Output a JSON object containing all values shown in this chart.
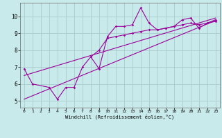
{
  "bg_color": "#c8eaea",
  "line_color": "#990099",
  "grid_color": "#aacccc",
  "x_data": [
    0,
    1,
    2,
    3,
    4,
    5,
    6,
    7,
    8,
    9,
    10,
    11,
    12,
    13,
    14,
    15,
    16,
    17,
    18,
    19,
    20,
    21,
    22,
    23
  ],
  "line1_y": [
    6.9,
    6.0,
    null,
    5.8,
    5.1,
    5.8,
    5.8,
    7.0,
    7.6,
    6.9,
    8.8,
    9.4,
    9.4,
    9.5,
    10.5,
    9.6,
    9.2,
    9.3,
    9.4,
    9.8,
    9.9,
    9.3,
    9.6,
    9.8
  ],
  "line2_y": [
    null,
    null,
    null,
    null,
    null,
    null,
    null,
    null,
    7.6,
    8.0,
    8.7,
    8.8,
    8.9,
    9.0,
    9.1,
    9.2,
    9.2,
    9.3,
    9.4,
    9.5,
    9.6,
    9.5,
    9.6,
    9.7
  ],
  "reg_line1_x": [
    0,
    23
  ],
  "reg_line1_y": [
    6.5,
    9.9
  ],
  "reg_line2_x": [
    0,
    23
  ],
  "reg_line2_y": [
    5.1,
    9.75
  ],
  "xlabel": "Windchill (Refroidissement éolien,°C)",
  "xlim": [
    -0.5,
    23.5
  ],
  "ylim": [
    4.6,
    10.8
  ],
  "yticks": [
    5,
    6,
    7,
    8,
    9,
    10
  ],
  "xticks": [
    0,
    1,
    2,
    3,
    4,
    5,
    6,
    7,
    8,
    9,
    10,
    11,
    12,
    13,
    14,
    15,
    16,
    17,
    18,
    19,
    20,
    21,
    22,
    23
  ]
}
